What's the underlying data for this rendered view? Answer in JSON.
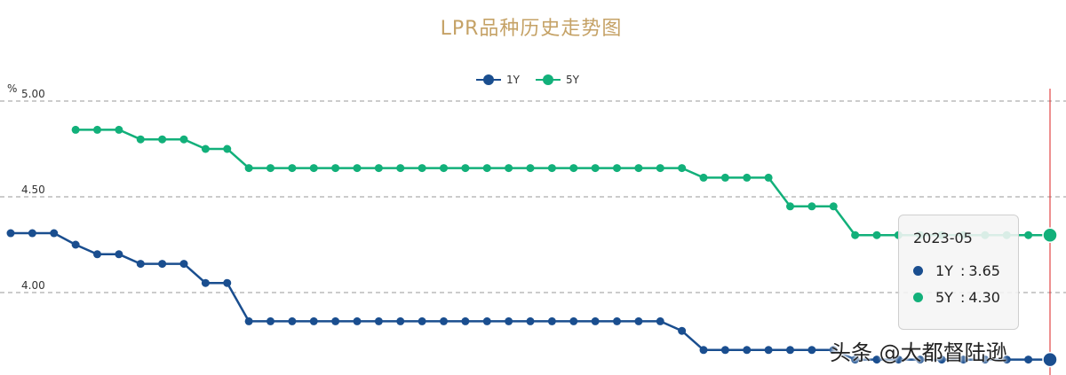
{
  "chart_data": {
    "type": "line",
    "title": "LPR品种历史走势图",
    "ylabel": "%",
    "ylim": [
      3.6,
      5.0
    ],
    "yticks": [
      "5.00",
      "4.50",
      "4.00"
    ],
    "grid": true,
    "legend_position": "top-center",
    "series": [
      {
        "name": "1Y",
        "color": "#1a4e8f",
        "values": [
          4.31,
          4.31,
          4.31,
          4.25,
          4.2,
          4.2,
          4.15,
          4.15,
          4.15,
          4.05,
          4.05,
          3.85,
          3.85,
          3.85,
          3.85,
          3.85,
          3.85,
          3.85,
          3.85,
          3.85,
          3.85,
          3.85,
          3.85,
          3.85,
          3.85,
          3.85,
          3.85,
          3.85,
          3.85,
          3.85,
          3.85,
          3.8,
          3.7,
          3.7,
          3.7,
          3.7,
          3.7,
          3.7,
          3.7,
          3.65,
          3.65,
          3.65,
          3.65,
          3.65,
          3.65,
          3.65,
          3.65,
          3.65,
          3.65
        ]
      },
      {
        "name": "5Y",
        "color": "#12b07a",
        "values": [
          null,
          null,
          null,
          4.85,
          4.85,
          4.85,
          4.8,
          4.8,
          4.8,
          4.75,
          4.75,
          4.65,
          4.65,
          4.65,
          4.65,
          4.65,
          4.65,
          4.65,
          4.65,
          4.65,
          4.65,
          4.65,
          4.65,
          4.65,
          4.65,
          4.65,
          4.65,
          4.65,
          4.65,
          4.65,
          4.65,
          4.65,
          4.6,
          4.6,
          4.6,
          4.6,
          4.45,
          4.45,
          4.45,
          4.3,
          4.3,
          4.3,
          4.3,
          4.3,
          4.3,
          4.3,
          4.3,
          4.3,
          4.3
        ]
      }
    ],
    "highlight_index": 48,
    "tooltip": {
      "title": "2023-05",
      "rows": [
        {
          "name": "1Y",
          "sep": ":",
          "value": "3.65",
          "color": "#1a4e8f"
        },
        {
          "name": "5Y",
          "sep": ":",
          "value": "4.30",
          "color": "#12b07a"
        }
      ]
    }
  },
  "watermark": "头条 @大都督陆逊"
}
